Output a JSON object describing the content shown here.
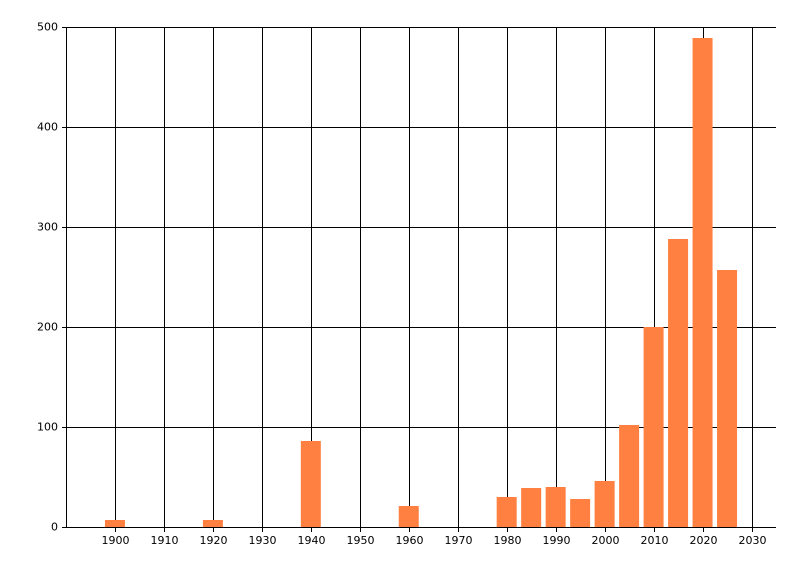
{
  "chart_data": {
    "type": "bar",
    "x": [
      1900,
      1920,
      1940,
      1960,
      1980,
      1985,
      1990,
      1995,
      2000,
      2005,
      2010,
      2015,
      2020,
      2025
    ],
    "values": [
      7,
      7,
      86,
      21,
      30,
      39,
      40,
      28,
      46,
      102,
      200,
      288,
      489,
      257
    ],
    "color": "#ff8040",
    "xlim": [
      1890,
      2035
    ],
    "xticks": [
      1900,
      1910,
      1920,
      1930,
      1940,
      1950,
      1960,
      1970,
      1980,
      1990,
      2000,
      2010,
      2020,
      2030
    ],
    "ylim": [
      0,
      500
    ],
    "yticks": [
      0,
      100,
      200,
      300,
      400,
      500
    ],
    "grid": true
  }
}
